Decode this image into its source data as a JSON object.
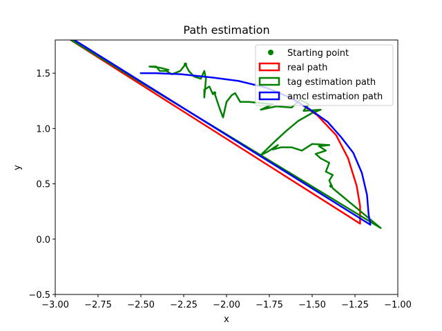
{
  "chart_data": {
    "type": "line",
    "title": "Path estimation",
    "xlabel": "x",
    "ylabel": "y",
    "xlim": [
      -3.0,
      -1.0
    ],
    "ylim": [
      -0.5,
      1.8
    ],
    "xticks": [
      -3.0,
      -2.75,
      -2.5,
      -2.25,
      -2.0,
      -1.75,
      -1.5,
      -1.25,
      -1.0
    ],
    "xtick_labels": [
      "−3.00",
      "−2.75",
      "−2.50",
      "−2.25",
      "−2.00",
      "−1.75",
      "−1.50",
      "−1.25",
      "−1.00"
    ],
    "yticks": [
      -0.5,
      0.0,
      0.5,
      1.0,
      1.5
    ],
    "ytick_labels": [
      "−0.5",
      "0.0",
      "0.5",
      "1.0",
      "1.5"
    ],
    "grid": false,
    "legend_position": "top-right",
    "series": [
      {
        "name": "Starting point",
        "kind": "marker",
        "color": "#008000",
        "points": [
          [
            -2.24,
            1.58
          ],
          [
            -2.07,
            1.32
          ],
          [
            -1.39,
            0.48
          ]
        ]
      },
      {
        "name": "real path",
        "kind": "line",
        "color": "#ff0000",
        "points": [
          [
            -2.95,
            1.84
          ],
          [
            -1.22,
            0.14
          ],
          [
            -1.22,
            0.3
          ],
          [
            -1.24,
            0.48
          ],
          [
            -1.29,
            0.73
          ],
          [
            -1.36,
            0.94
          ],
          [
            -1.47,
            1.12
          ],
          [
            -1.62,
            1.28
          ]
        ]
      },
      {
        "name": "tag estimation path",
        "kind": "line",
        "color": "#008000",
        "points": [
          [
            -2.95,
            1.84
          ],
          [
            -1.1,
            0.1
          ],
          [
            -1.38,
            0.46
          ],
          [
            -1.4,
            0.53
          ],
          [
            -1.38,
            0.58
          ],
          [
            -1.42,
            0.61
          ],
          [
            -1.4,
            0.69
          ],
          [
            -1.45,
            0.73
          ],
          [
            -1.48,
            0.77
          ],
          [
            -1.42,
            0.8
          ],
          [
            -1.46,
            0.84
          ],
          [
            -1.4,
            0.85
          ],
          [
            -1.5,
            0.86
          ],
          [
            -1.56,
            0.8
          ],
          [
            -1.62,
            0.83
          ],
          [
            -1.68,
            0.83
          ],
          [
            -1.73,
            0.81
          ],
          [
            -1.7,
            0.85
          ],
          [
            -1.76,
            0.79
          ],
          [
            -1.8,
            0.76
          ],
          [
            -1.72,
            0.88
          ],
          [
            -1.65,
            0.98
          ],
          [
            -1.58,
            1.07
          ],
          [
            -1.5,
            1.14
          ],
          [
            -1.45,
            1.17
          ],
          [
            -1.55,
            1.16
          ],
          [
            -1.52,
            1.22
          ],
          [
            -1.57,
            1.26
          ],
          [
            -1.62,
            1.19
          ],
          [
            -1.71,
            1.2
          ],
          [
            -1.8,
            1.17
          ],
          [
            -1.73,
            1.22
          ],
          [
            -1.87,
            1.24
          ],
          [
            -1.92,
            1.24
          ],
          [
            -1.95,
            1.32
          ],
          [
            -1.97,
            1.3
          ],
          [
            -2.0,
            1.24
          ],
          [
            -2.02,
            1.1
          ],
          [
            -2.04,
            1.18
          ],
          [
            -2.07,
            1.32
          ],
          [
            -2.08,
            1.31
          ],
          [
            -2.1,
            1.38
          ],
          [
            -2.13,
            1.35
          ],
          [
            -2.13,
            1.28
          ],
          [
            -2.12,
            1.45
          ],
          [
            -2.13,
            1.52
          ],
          [
            -2.15,
            1.45
          ],
          [
            -2.19,
            1.47
          ],
          [
            -2.22,
            1.52
          ],
          [
            -2.24,
            1.58
          ],
          [
            -2.27,
            1.52
          ],
          [
            -2.32,
            1.49
          ],
          [
            -2.35,
            1.52
          ],
          [
            -2.39,
            1.52
          ],
          [
            -2.41,
            1.56
          ],
          [
            -2.45,
            1.56
          ],
          [
            -2.39,
            1.55
          ],
          [
            -2.34,
            1.53
          ]
        ]
      },
      {
        "name": "amcl estimation path",
        "kind": "line",
        "color": "#0000ff",
        "points": [
          [
            -2.93,
            1.84
          ],
          [
            -1.16,
            0.13
          ],
          [
            -1.17,
            0.22
          ],
          [
            -1.18,
            0.4
          ],
          [
            -1.21,
            0.6
          ],
          [
            -1.26,
            0.78
          ],
          [
            -1.33,
            0.92
          ],
          [
            -1.41,
            1.06
          ],
          [
            -1.52,
            1.18
          ],
          [
            -1.63,
            1.28
          ],
          [
            -1.77,
            1.37
          ],
          [
            -1.93,
            1.43
          ],
          [
            -2.08,
            1.46
          ],
          [
            -2.26,
            1.49
          ],
          [
            -2.41,
            1.5
          ],
          [
            -2.5,
            1.5
          ]
        ]
      }
    ]
  }
}
